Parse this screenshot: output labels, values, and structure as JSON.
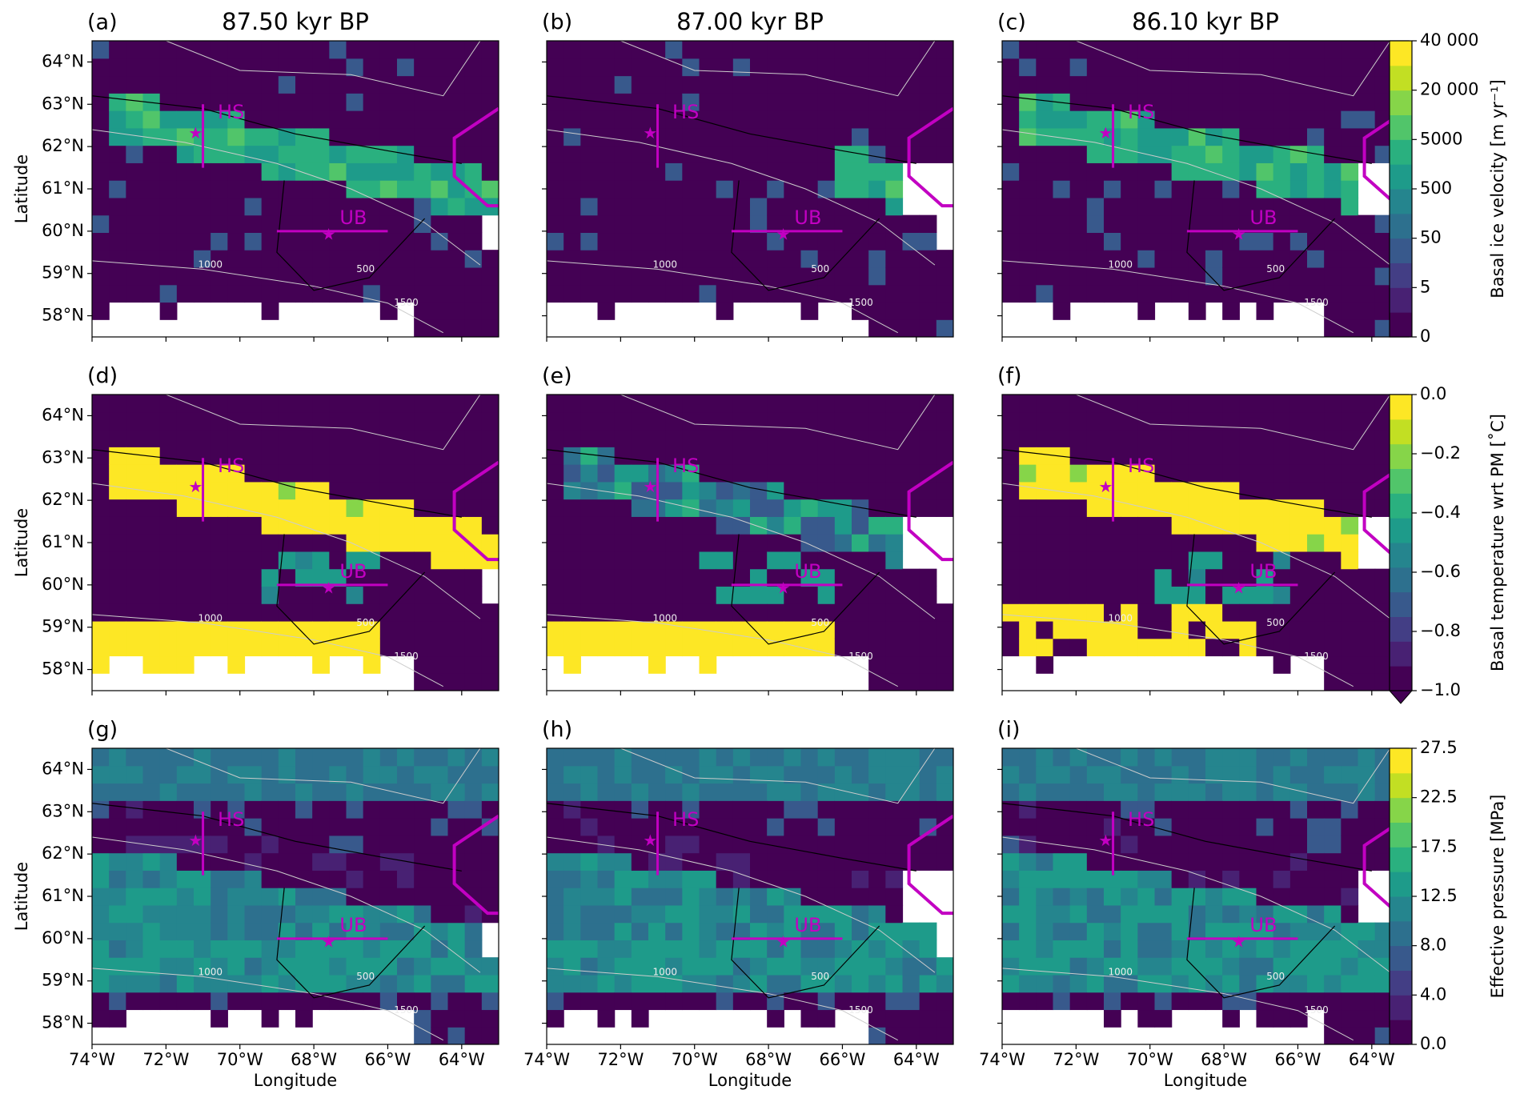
{
  "columns": [
    {
      "title": "87.50 kyr BP"
    },
    {
      "title": "87.00 kyr BP"
    },
    {
      "title": "86.10 kyr BP"
    }
  ],
  "panels": [
    "(a)",
    "(b)",
    "(c)",
    "(d)",
    "(e)",
    "(f)",
    "(g)",
    "(h)",
    "(i)"
  ],
  "x_axis": {
    "label": "Longitude",
    "xlim": [
      -74,
      -63
    ],
    "ticks": [
      {
        "value": -74,
        "label": "74°W"
      },
      {
        "value": -72,
        "label": "72°W"
      },
      {
        "value": -70,
        "label": "70°W"
      },
      {
        "value": -68,
        "label": "68°W"
      },
      {
        "value": -66,
        "label": "66°W"
      },
      {
        "value": -64,
        "label": "64°W"
      }
    ]
  },
  "y_axis": {
    "label": "Latitude",
    "ylim": [
      57.5,
      64.5
    ],
    "ticks": [
      {
        "value": 58,
        "label": "58°N"
      },
      {
        "value": 59,
        "label": "59°N"
      },
      {
        "value": 60,
        "label": "60°N"
      },
      {
        "value": 61,
        "label": "61°N"
      },
      {
        "value": 62,
        "label": "62°N"
      },
      {
        "value": 63,
        "label": "63°N"
      },
      {
        "value": 64,
        "label": "64°N"
      }
    ]
  },
  "colorbars": [
    {
      "label": "Basal ice velocity [m yr⁻¹]",
      "ticks": [
        0,
        5,
        50,
        500,
        5000,
        {
          "value": 20000,
          "label": "20 000"
        },
        {
          "value": 40000,
          "label": "40 000"
        }
      ]
    },
    {
      "label": "Basal temperature wrt PM [˚C]",
      "extend": "min",
      "ticks": [
        {
          "value": -1,
          "label": "−1.0"
        },
        {
          "value": -0.8,
          "label": "−0.8"
        },
        {
          "value": -0.6,
          "label": "−0.6"
        },
        {
          "value": -0.4,
          "label": "−0.4"
        },
        {
          "value": -0.2,
          "label": "−0.2"
        },
        {
          "value": 0,
          "label": "0.0"
        }
      ]
    },
    {
      "label": "Effective pressure [MPa]",
      "ticks": [
        {
          "value": 0,
          "label": "0.0"
        },
        {
          "value": 4,
          "label": "4.0"
        },
        {
          "value": 8,
          "label": "8.0"
        },
        12.5,
        17.5,
        22.5,
        27.5
      ]
    }
  ],
  "annotations": {
    "hs": "HS",
    "ub": "UB",
    "contours": [
      500,
      1000,
      1500
    ]
  }
}
